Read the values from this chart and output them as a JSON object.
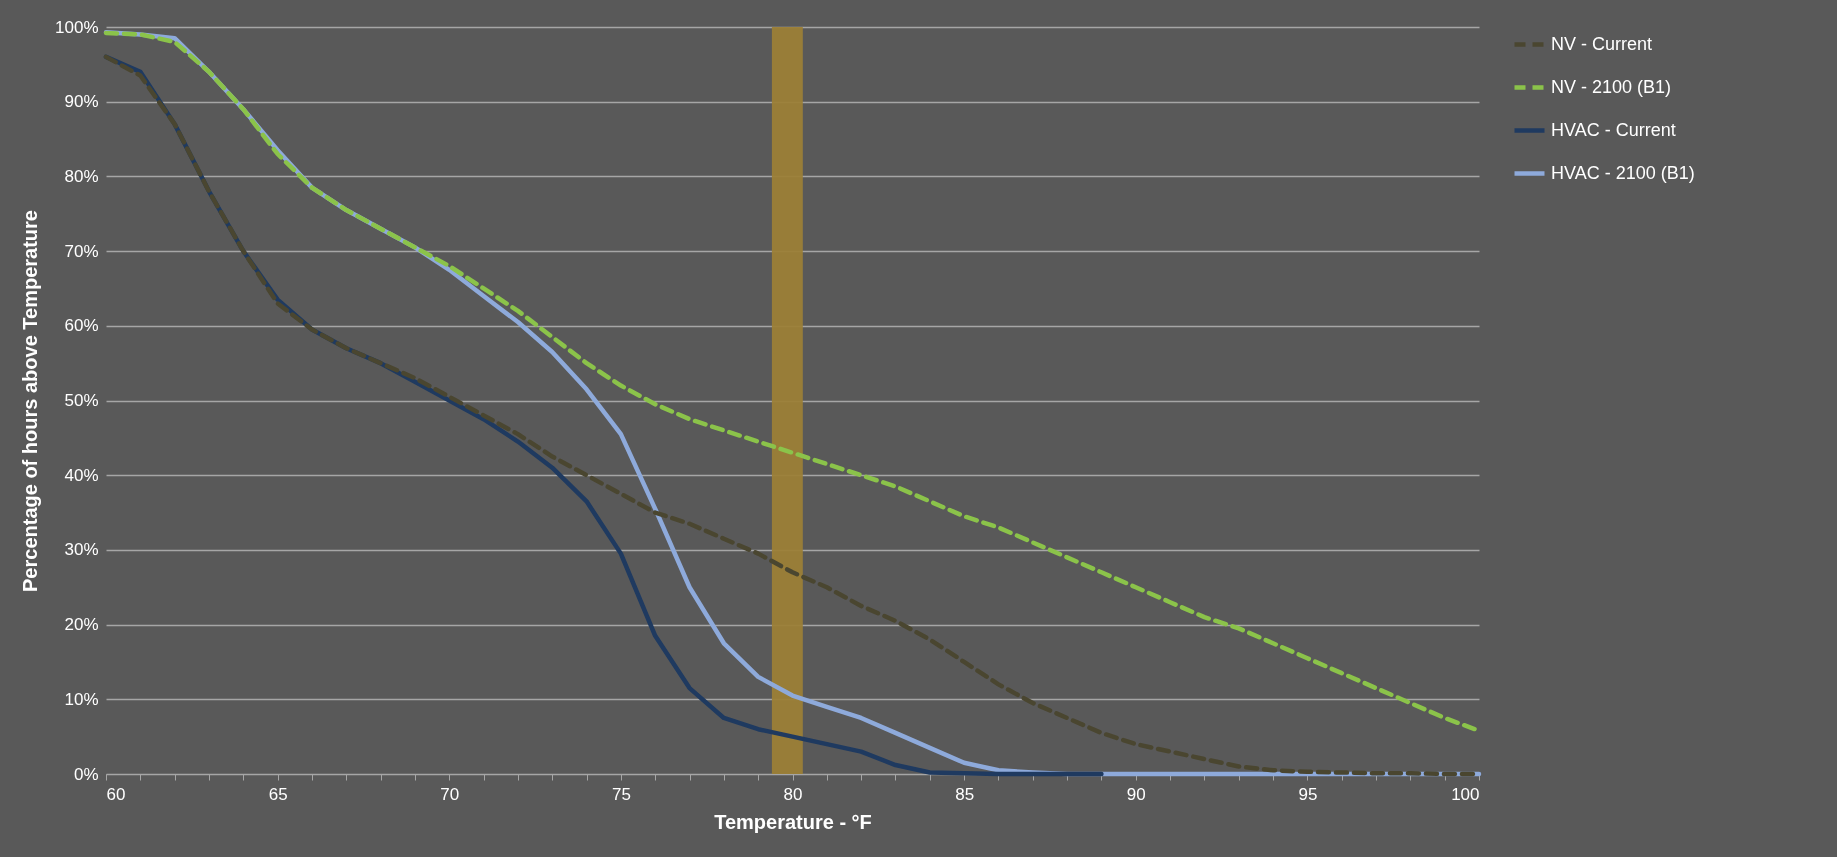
{
  "chart_data": {
    "type": "line",
    "xlabel": "Temperature  - °F",
    "ylabel": "Percentage of hours above Temperature",
    "x": [
      60,
      61,
      62,
      63,
      64,
      65,
      66,
      67,
      68,
      69,
      70,
      71,
      72,
      73,
      74,
      75,
      76,
      77,
      78,
      79,
      80,
      81,
      82,
      83,
      84,
      85,
      86,
      87,
      88,
      89,
      90,
      91,
      92,
      93,
      94,
      95,
      96,
      97,
      98,
      99,
      100
    ],
    "series": [
      {
        "name": "NV - Current",
        "color": "#4a4630",
        "line_style": "dashed",
        "values": [
          96,
          93.5,
          87,
          78,
          70,
          63,
          59.5,
          57,
          55,
          53,
          50.5,
          48,
          45.5,
          42.5,
          40,
          37.5,
          35,
          33.5,
          31.5,
          29.5,
          27,
          25,
          22.5,
          20.5,
          18,
          15,
          12,
          9.5,
          7.5,
          5.5,
          4,
          3,
          2,
          1,
          0.5,
          0.3,
          0.2,
          0.1,
          0.1,
          0,
          0
        ]
      },
      {
        "name": "NV - 2100 (B1)",
        "color": "#8bc34a",
        "line_style": "dashed",
        "values": [
          99.2,
          99,
          98,
          94,
          89,
          83,
          78.5,
          75.5,
          73,
          70.5,
          68,
          65,
          62,
          58.5,
          55,
          52,
          49.5,
          47.5,
          46,
          44.5,
          43,
          41.5,
          40,
          38.5,
          36.5,
          34.5,
          33,
          31,
          29,
          27,
          25,
          23,
          21,
          19.5,
          17.5,
          15.5,
          13.5,
          11.5,
          9.5,
          7.5,
          5.8
        ]
      },
      {
        "name": "HVAC - Current",
        "color": "#1f3a60",
        "line_style": "solid",
        "values": [
          96,
          94,
          87,
          78,
          70,
          63.5,
          59.5,
          57,
          55,
          52.5,
          50,
          47.5,
          44.5,
          41,
          36.5,
          29.5,
          18.5,
          11.5,
          7.5,
          6,
          5,
          4,
          3,
          1.2,
          0.2,
          0.1,
          0,
          0,
          0,
          0,
          null,
          null,
          null,
          null,
          null,
          null,
          null,
          null,
          null,
          null,
          null
        ]
      },
      {
        "name": "HVAC - 2100 (B1)",
        "color": "#8eaadb",
        "line_style": "solid",
        "values": [
          99.3,
          99,
          98.5,
          94,
          89,
          83.5,
          78.5,
          75.5,
          73,
          70.5,
          67.5,
          64,
          60.5,
          56.5,
          51.5,
          45.5,
          35.5,
          25,
          17.5,
          13,
          10.5,
          9,
          7.5,
          5.5,
          3.5,
          1.5,
          0.5,
          0.2,
          0,
          0,
          0,
          0,
          0,
          0,
          0,
          0,
          0,
          0,
          0,
          0,
          0
        ]
      }
    ],
    "bands": [
      {
        "axis": "x",
        "from": 79.4,
        "to": 80.3,
        "color": "#9c7f37"
      }
    ],
    "xlim": [
      60,
      100
    ],
    "xticks": [
      60,
      {
        "value": 61,
        "label": null
      },
      {
        "value": 62,
        "label": null
      },
      {
        "value": 63,
        "label": null
      },
      {
        "value": 64,
        "label": null
      },
      65,
      {
        "value": 66,
        "label": null
      },
      {
        "value": 67,
        "label": null
      },
      {
        "value": 68,
        "label": null
      },
      {
        "value": 69,
        "label": null
      },
      70,
      {
        "value": 71,
        "label": null
      },
      {
        "value": 72,
        "label": null
      },
      {
        "value": 73,
        "label": null
      },
      {
        "value": 74,
        "label": null
      },
      75,
      {
        "value": 76,
        "label": null
      },
      {
        "value": 77,
        "label": null
      },
      {
        "value": 78,
        "label": null
      },
      {
        "value": 79,
        "label": null
      },
      80,
      {
        "value": 81,
        "label": null
      },
      {
        "value": 82,
        "label": null
      },
      {
        "value": 83,
        "label": null
      },
      {
        "value": 84,
        "label": null
      },
      85,
      {
        "value": 86,
        "label": null
      },
      {
        "value": 87,
        "label": null
      },
      {
        "value": 88,
        "label": null
      },
      {
        "value": 89,
        "label": null
      },
      90,
      {
        "value": 91,
        "label": null
      },
      {
        "value": 92,
        "label": null
      },
      {
        "value": 93,
        "label": null
      },
      {
        "value": 94,
        "label": null
      },
      95,
      {
        "value": 96,
        "label": null
      },
      {
        "value": 97,
        "label": null
      },
      {
        "value": 98,
        "label": null
      },
      {
        "value": 99,
        "label": null
      },
      100
    ],
    "ylim": [
      0,
      100
    ],
    "yticks": [
      {
        "value": 0,
        "label": "0%"
      },
      {
        "value": 10,
        "label": "10%"
      },
      {
        "value": 20,
        "label": "20%"
      },
      {
        "value": 30,
        "label": "30%"
      },
      {
        "value": 40,
        "label": "40%"
      },
      {
        "value": 50,
        "label": "50%"
      },
      {
        "value": 60,
        "label": "60%"
      },
      {
        "value": 70,
        "label": "70%"
      },
      {
        "value": 80,
        "label": "80%"
      },
      {
        "value": 90,
        "label": "90%"
      },
      {
        "value": 100,
        "label": "100%"
      }
    ],
    "grid": "y",
    "legend": "right",
    "marker": "none"
  }
}
